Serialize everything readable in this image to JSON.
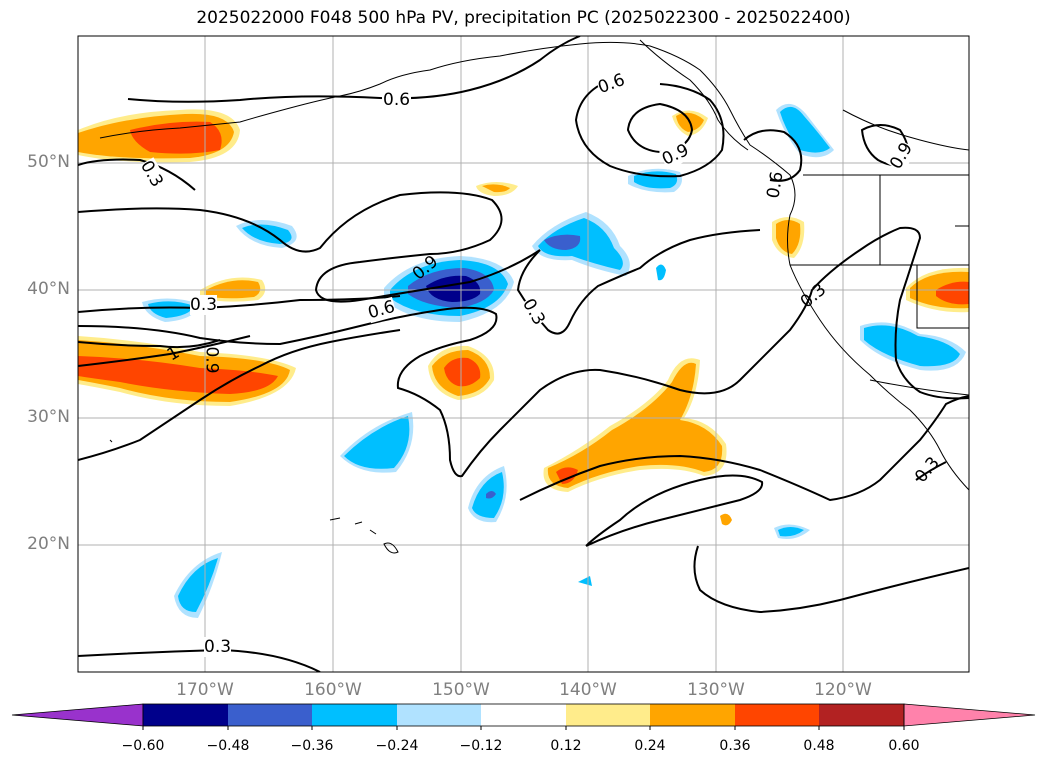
{
  "title": "2025022000 F048 500 hPa PV, precipitation PC (2025022300 - 2025022400)",
  "lat_labels": [
    "50°N",
    "40°N",
    "30°N",
    "20°N"
  ],
  "lon_labels": [
    "170°W",
    "160°W",
    "150°W",
    "140°W",
    "130°W",
    "120°W"
  ],
  "contour_labels": [
    "0.6",
    "0.6",
    "0.9",
    "0.3",
    "0.9",
    "0.6",
    "0.3",
    "0.3",
    "0.6",
    "0.3",
    "1",
    "0.3",
    "0.9",
    "0.3",
    "0.3",
    "0.6"
  ],
  "colorbar": {
    "ticks": [
      "−0.60",
      "−0.48",
      "−0.36",
      "−0.24",
      "−0.12",
      "0.12",
      "0.24",
      "0.36",
      "0.48",
      "0.60"
    ],
    "colors": [
      "#9932cc",
      "#00008b",
      "#3a5fcd",
      "#00bfff",
      "#b0e2ff",
      "#ffffff",
      "#ffec8b",
      "#ffa500",
      "#ff4500",
      "#b22222",
      "#ff82ab"
    ]
  },
  "palette": {
    "dark_blue": "#00008b",
    "mid_blue": "#3a5fcd",
    "sky_blue": "#00bfff",
    "light_blue": "#b0e2ff",
    "light_yellow": "#ffec8b",
    "orange": "#ffa500",
    "red_orange": "#ff4500"
  }
}
